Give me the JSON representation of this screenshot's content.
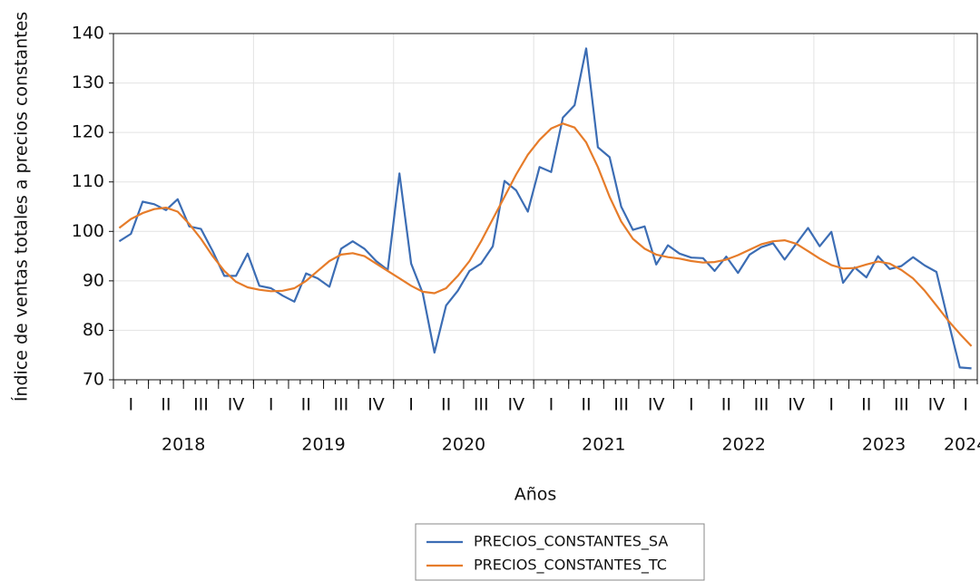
{
  "chart_data": {
    "type": "line",
    "y_label": "Índice de ventas totales a precios constantes",
    "x_label": "Años",
    "categories": [
      null,
      null,
      null,
      null,
      null,
      null,
      null,
      null,
      null,
      null,
      null,
      null,
      null,
      null,
      null,
      null,
      null,
      null,
      null,
      null,
      null,
      null,
      null,
      null,
      null,
      null,
      null,
      null,
      null,
      null,
      null,
      null,
      null,
      null,
      null,
      null,
      null,
      null,
      null,
      null,
      null,
      null,
      null,
      null,
      null,
      null,
      null,
      null,
      null,
      null,
      null,
      null,
      null,
      null,
      null,
      null,
      null,
      null,
      null,
      null,
      null,
      null,
      null,
      null,
      null,
      null,
      null,
      null,
      null,
      null,
      null,
      null,
      null,
      null
    ],
    "quarter_labels": [
      "I",
      "II",
      "III",
      "IV",
      "I",
      "II",
      "III",
      "IV",
      "I",
      "II",
      "III",
      "IV",
      "I",
      "II",
      "III",
      "IV",
      "I",
      "II",
      "III",
      "IV",
      "I",
      "II",
      "III",
      "IV",
      "I"
    ],
    "year_labels": [
      "2018",
      "2019",
      "2020",
      "2021",
      "2022",
      "2023",
      "2024"
    ],
    "series": [
      {
        "name": "PRECIOS_CONSTANTES_SA",
        "color": "#3c6db4",
        "values": [
          98,
          99.5,
          106,
          105.5,
          104.3,
          106.5,
          101,
          100.5,
          96,
          91,
          91,
          95.5,
          89,
          88.5,
          87,
          85.8,
          91.5,
          90.5,
          88.8,
          96.5,
          98,
          96.5,
          94,
          92.2,
          111.7,
          93.5,
          87.5,
          75.5,
          85,
          88,
          92,
          93.5,
          97,
          110.2,
          108.3,
          104,
          113,
          112,
          123,
          125.5,
          137,
          117,
          115,
          105,
          100.3,
          101,
          93.3,
          97.2,
          95.5,
          94.7,
          94.6,
          92,
          94.9,
          91.6,
          95.3,
          96.8,
          97.6,
          94.3,
          97.5,
          100.7,
          97,
          99.9,
          89.6,
          92.7,
          90.7,
          95,
          92.4,
          93,
          94.8,
          93.1,
          91.8,
          82,
          72.5,
          72.3
        ]
      },
      {
        "name": "PRECIOS_CONSTANTES_TC",
        "color": "#e67c2a",
        "values": [
          100.7,
          102.5,
          103.7,
          104.5,
          104.8,
          104,
          101.5,
          98.5,
          95,
          92,
          89.8,
          88.7,
          88.2,
          87.9,
          88,
          88.5,
          90,
          92,
          94,
          95.3,
          95.6,
          95,
          93.5,
          92,
          90.5,
          89,
          87.8,
          87.5,
          88.5,
          91,
          94,
          98,
          102.5,
          107,
          111.5,
          115.5,
          118.5,
          120.8,
          121.8,
          121,
          118,
          113,
          107,
          102,
          98.5,
          96.5,
          95.3,
          94.8,
          94.5,
          94,
          93.7,
          93.8,
          94.3,
          95.2,
          96.3,
          97.4,
          98,
          98.2,
          97.5,
          96,
          94.5,
          93.2,
          92.5,
          92.6,
          93.3,
          93.9,
          93.5,
          92.2,
          90.5,
          88,
          85,
          82,
          79.3,
          76.8
        ]
      }
    ],
    "ylim": [
      70,
      140
    ],
    "yticks": [
      70,
      80,
      90,
      100,
      110,
      120,
      130,
      140
    ],
    "grid": true
  }
}
